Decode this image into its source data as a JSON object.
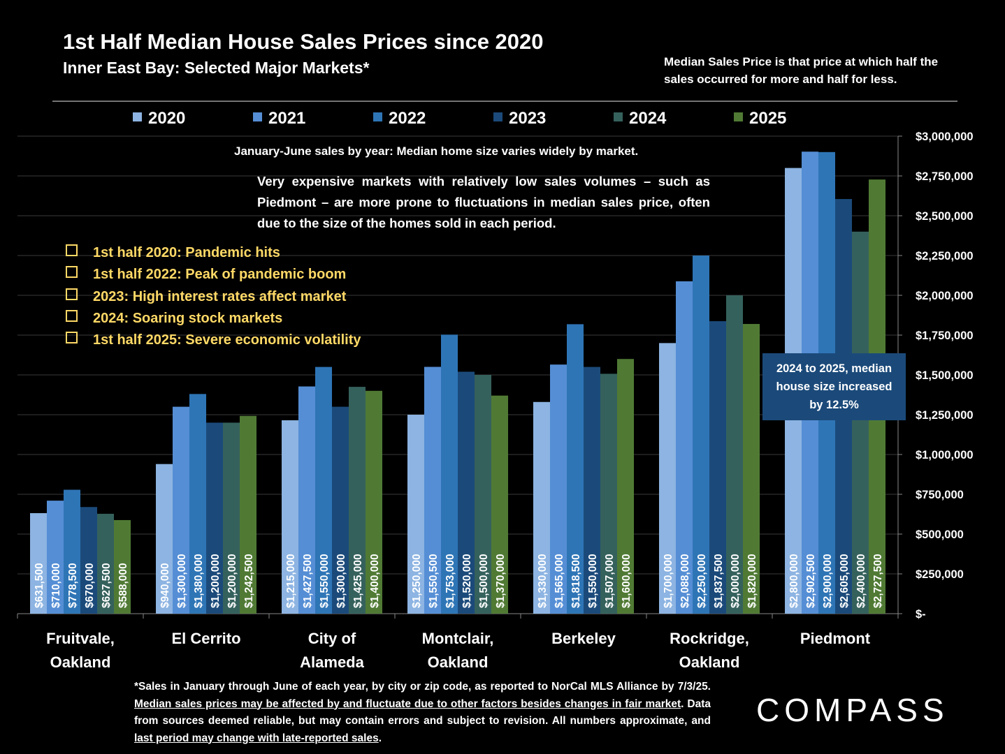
{
  "chart_data": {
    "type": "bar",
    "title": "1st Half Median House Sales Prices since 2020",
    "subtitle": "Inner East Bay: Selected Major Markets*",
    "note": "Median Sales Price is that price at which half the sales occurred for more and half for less.",
    "annotation_header": "January-June sales by year: Median home size varies widely by market.",
    "annotation": "Very expensive markets with relatively low sales volumes – such as Piedmont – are more prone to fluctuations in median sales price, often due to the size of the homes sold in each period.",
    "events": [
      "1st half 2020: Pandemic hits",
      "1st half 2022:  Peak of pandemic boom",
      "2023:  High interest rates affect market",
      "2024:  Soaring stock markets",
      "1st half 2025:  Severe economic volatility"
    ],
    "callout": "2024 to 2025, median house size increased by 12.5%",
    "footnote": [
      {
        "text": "*Sales in January through June of each year, by city or zip code, as reported to NorCal MLS Alliance by 7/3/25. ",
        "underline": false
      },
      {
        "text": "Median sales prices may be affected by and fluctuate due to other factors besides changes in fair market",
        "underline": true
      },
      {
        "text": ". Data from sources deemed reliable, but may contain errors and subject to revision. All numbers approximate, and ",
        "underline": false
      },
      {
        "text": "last period may change with late-reported sales",
        "underline": true
      },
      {
        "text": ".",
        "underline": false
      }
    ],
    "logo": "COMPASS",
    "categories": [
      "Fruitvale, Oakland",
      "El Cerrito",
      "City of Alameda",
      "Montclair, Oakland",
      "Berkeley",
      "Rockridge, Oakland",
      "Piedmont"
    ],
    "series": [
      {
        "name": "2020",
        "color": "#8db4e2",
        "values": [
          631500,
          940000,
          1215000,
          1250000,
          1330000,
          1700000,
          2800000
        ],
        "value_labels": [
          "$631,500",
          "$940,000",
          "$1,215,000",
          "$1,250,000",
          "$1,330,000",
          "$1,700,000",
          "$2,800,000"
        ]
      },
      {
        "name": "2021",
        "color": "#558ed5",
        "values": [
          710000,
          1300000,
          1427500,
          1550500,
          1565000,
          2088000,
          2902500
        ],
        "value_labels": [
          "$710,000",
          "$1,300,000",
          "$1,427,500",
          "$1,550,500",
          "$1,565,000",
          "$2,088,000",
          "$2,902,500"
        ]
      },
      {
        "name": "2022",
        "color": "#2e75b6",
        "values": [
          778500,
          1380000,
          1550000,
          1753000,
          1818500,
          2250000,
          2900000
        ],
        "value_labels": [
          "$778,500",
          "$1,380,000",
          "$1,550,000",
          "$1,753,000",
          "$1,818,500",
          "$2,250,000",
          "$2,900,000"
        ]
      },
      {
        "name": "2023",
        "color": "#1b4a7a",
        "values": [
          670000,
          1200000,
          1300000,
          1520000,
          1550000,
          1837500,
          2605000
        ],
        "value_labels": [
          "$670,000",
          "$1,200,000",
          "$1,300,000",
          "$1,520,000",
          "$1,550,000",
          "$1,837,500",
          "$2,605,000"
        ]
      },
      {
        "name": "2024",
        "color": "#35615c",
        "values": [
          627500,
          1200000,
          1425000,
          1500000,
          1507000,
          2000000,
          2400000
        ],
        "value_labels": [
          "$627,500",
          "$1,200,000",
          "$1,425,000",
          "$1,500,000",
          "$1,507,000",
          "$2,000,000",
          "$2,400,000"
        ]
      },
      {
        "name": "2025",
        "color": "#507a34",
        "values": [
          588000,
          1242500,
          1400000,
          1370000,
          1600000,
          1820000,
          2727500
        ],
        "value_labels": [
          "$588,000",
          "$1,242,500",
          "$1,400,000",
          "$1,370,000",
          "$1,600,000",
          "$1,820,000",
          "$2,727,500"
        ]
      }
    ],
    "ylim": [
      0,
      3000000
    ],
    "yticks": [
      {
        "value": 0,
        "label": "$-"
      },
      {
        "value": 250000,
        "label": "$250,000"
      },
      {
        "value": 500000,
        "label": "$500,000"
      },
      {
        "value": 750000,
        "label": "$750,000"
      },
      {
        "value": 1000000,
        "label": "$1,000,000"
      },
      {
        "value": 1250000,
        "label": "$1,250,000"
      },
      {
        "value": 1500000,
        "label": "$1,500,000"
      },
      {
        "value": 1750000,
        "label": "$1,750,000"
      },
      {
        "value": 2000000,
        "label": "$2,000,000"
      },
      {
        "value": 2250000,
        "label": "$2,250,000"
      },
      {
        "value": 2500000,
        "label": "$2,500,000"
      },
      {
        "value": 2750000,
        "label": "$2,750,000"
      },
      {
        "value": 3000000,
        "label": "$3,000,000"
      }
    ],
    "grid": true,
    "legend": "top"
  }
}
